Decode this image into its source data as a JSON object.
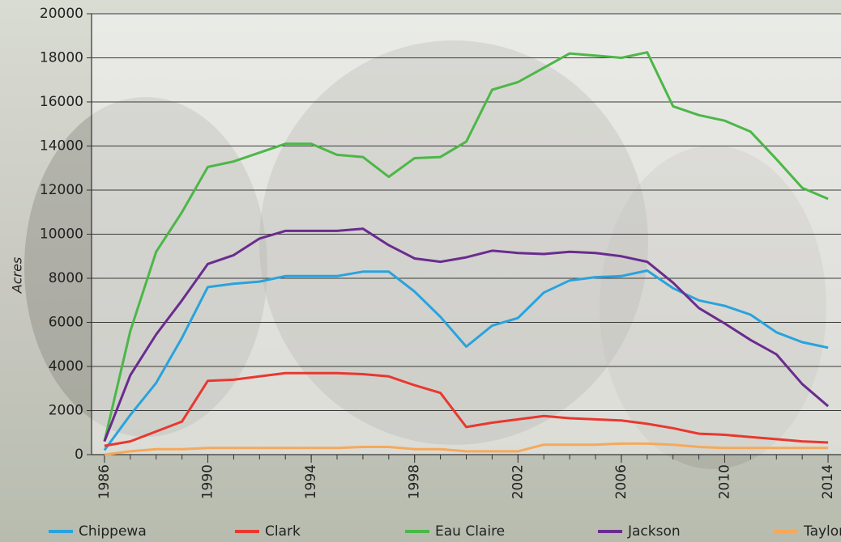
{
  "chart_data": {
    "type": "line",
    "y_label": "Acres",
    "x": [
      1986,
      1987,
      1988,
      1989,
      1990,
      1991,
      1992,
      1993,
      1994,
      1995,
      1996,
      1997,
      1998,
      1999,
      2000,
      2001,
      2002,
      2003,
      2004,
      2005,
      2006,
      2007,
      2008,
      2009,
      2010,
      2011,
      2012,
      2013,
      2014
    ],
    "xlim": [
      1985.5,
      2014.5
    ],
    "xticks": [
      1986,
      1990,
      1994,
      1998,
      2002,
      2006,
      2010,
      2014
    ],
    "ylim": [
      0,
      20000
    ],
    "yticks": [
      0,
      2000,
      4000,
      6000,
      8000,
      10000,
      12000,
      14000,
      16000,
      18000,
      20000
    ],
    "grid": true,
    "legend": "bottom",
    "series": [
      {
        "name": "Chippewa",
        "color": "#29a3dd",
        "values": [
          200,
          1800,
          3250,
          5300,
          7600,
          7750,
          7850,
          8100,
          8100,
          8100,
          8300,
          8300,
          7400,
          6250,
          4900,
          5850,
          6200,
          7350,
          7900,
          8050,
          8100,
          8350,
          7550,
          7000,
          6750,
          6350,
          5550,
          5100,
          4850
        ]
      },
      {
        "name": "Clark",
        "color": "#e8382f",
        "values": [
          400,
          600,
          1050,
          1500,
          3350,
          3400,
          3550,
          3700,
          3700,
          3700,
          3650,
          3550,
          3150,
          2800,
          1250,
          1450,
          1600,
          1750,
          1650,
          1600,
          1550,
          1400,
          1200,
          950,
          900,
          800,
          700,
          600,
          550
        ]
      },
      {
        "name": "Eau Claire",
        "color": "#4cb748",
        "values": [
          600,
          5600,
          9200,
          11000,
          13050,
          13300,
          13700,
          14100,
          14100,
          13600,
          13500,
          12600,
          13450,
          13500,
          14200,
          16550,
          16900,
          17550,
          18200,
          18100,
          18000,
          18250,
          15800,
          15400,
          15150,
          14650,
          13400,
          12100,
          11600
        ]
      },
      {
        "name": "Jackson",
        "color": "#6a2c8e",
        "values": [
          600,
          3600,
          5450,
          7000,
          8650,
          9050,
          9800,
          10150,
          10150,
          10150,
          10250,
          9500,
          8900,
          8750,
          8950,
          9250,
          9150,
          9100,
          9200,
          9150,
          9000,
          8750,
          7800,
          6650,
          5950,
          5200,
          4550,
          3200,
          2200
        ]
      },
      {
        "name": "Taylor",
        "color": "#f5a95b",
        "values": [
          0,
          150,
          250,
          250,
          300,
          300,
          300,
          300,
          300,
          300,
          350,
          350,
          250,
          250,
          150,
          150,
          150,
          450,
          450,
          450,
          500,
          500,
          450,
          350,
          300,
          300,
          300,
          300,
          300
        ]
      }
    ]
  }
}
